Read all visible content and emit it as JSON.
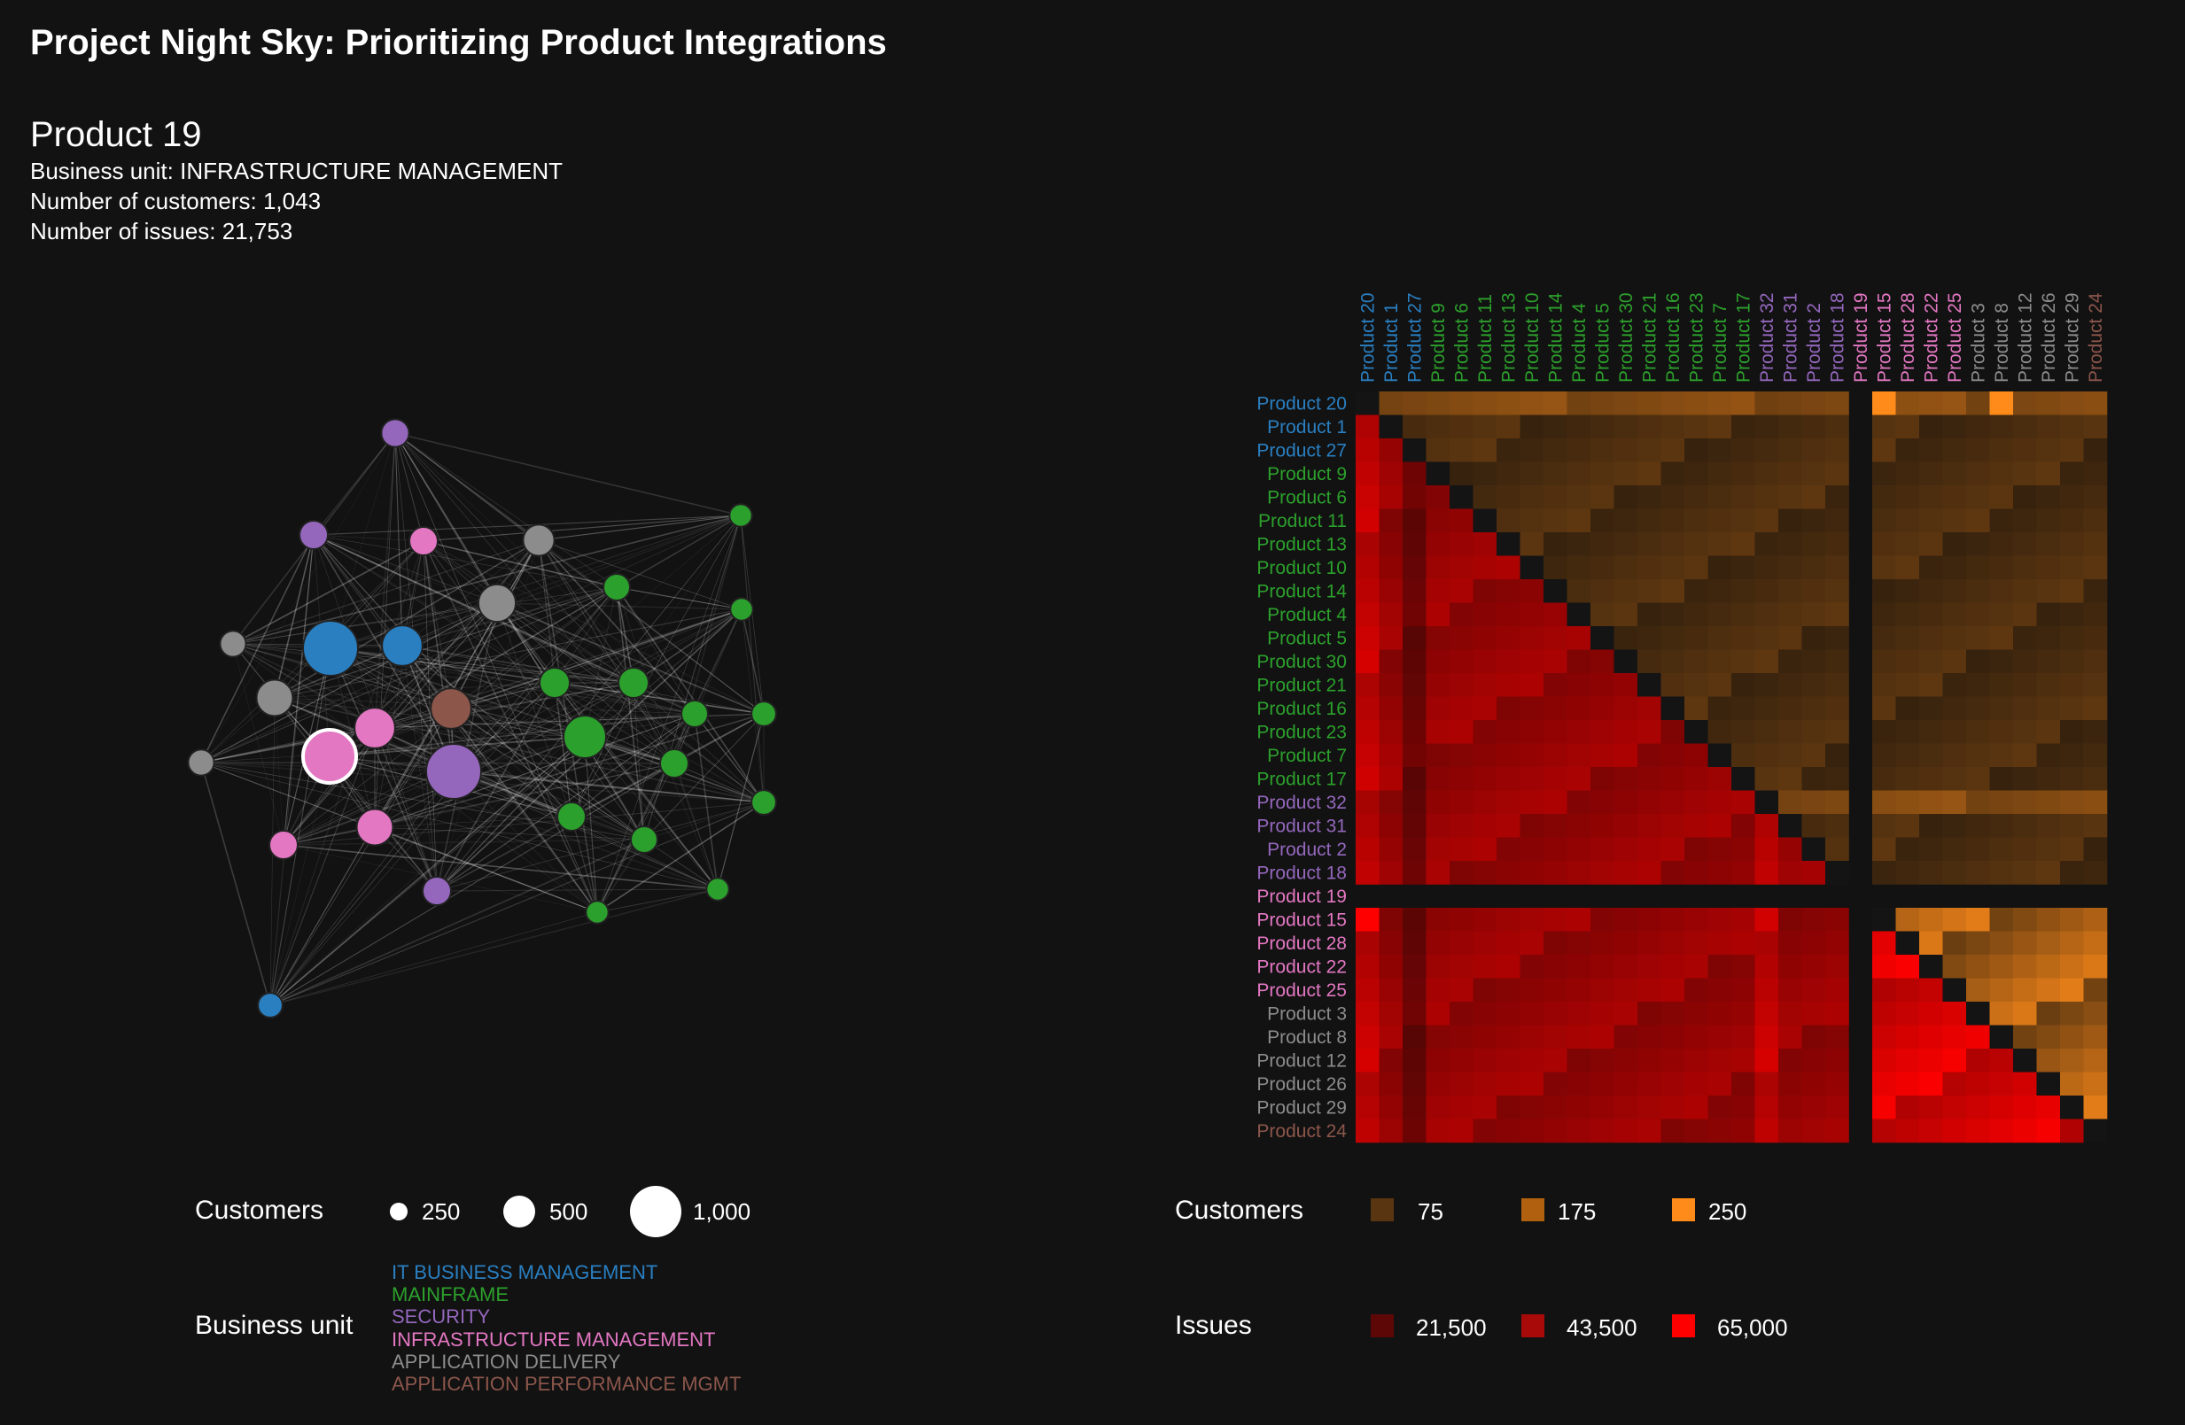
{
  "title": "Project Night Sky: Prioritizing Product Integrations",
  "selected": {
    "name": "Product 19",
    "business_unit": "Business unit: INFRASTRUCTURE MANAGEMENT",
    "customers": "Number of customers: 1,043",
    "issues": "Number of issues: 21,753"
  },
  "colors": {
    "background": "#121212",
    "IT BUSINESS MANAGEMENT": "#2a7fc1",
    "MAINFRAME": "#2ca02c",
    "SECURITY": "#9467bd",
    "INFRASTRUCTURE MANAGEMENT": "#e377c2",
    "APPLICATION DELIVERY": "#8c8c8c",
    "APPLICATION PERFORMANCE MGMT": "#8c564b",
    "customers_low": "#3a2410",
    "customers_high": "#ff8c1a",
    "issues_low": "#4a0808",
    "issues_high": "#ff0000"
  },
  "legend": {
    "customers_title": "Customers",
    "customer_sizes": [
      {
        "value": 250,
        "label": "250"
      },
      {
        "value": 500,
        "label": "500"
      },
      {
        "value": 1000,
        "label": "1,000"
      }
    ],
    "business_unit_title": "Business unit",
    "business_units": [
      "IT BUSINESS MANAGEMENT",
      "MAINFRAME",
      "SECURITY",
      "INFRASTRUCTURE MANAGEMENT",
      "APPLICATION DELIVERY",
      "APPLICATION PERFORMANCE MGMT"
    ],
    "matrix_customers_title": "Customers",
    "matrix_customers": [
      {
        "value": 75,
        "label": "75",
        "color": "#5a3512"
      },
      {
        "value": 175,
        "label": "175",
        "color": "#b0600f"
      },
      {
        "value": 250,
        "label": "250",
        "color": "#ff8c1a"
      }
    ],
    "matrix_issues_title": "Issues",
    "matrix_issues": [
      {
        "value": 21500,
        "label": "21,500",
        "color": "#5e0707"
      },
      {
        "value": 43500,
        "label": "43,500",
        "color": "#a80a0a"
      },
      {
        "value": 65000,
        "label": "65,000",
        "color": "#ff0000"
      }
    ]
  },
  "chart_data": [
    {
      "type": "network",
      "selected_node": "Product 19",
      "nodes": [
        {
          "bu": "IT BUSINESS MANAGEMENT",
          "customers": 1000
        },
        {
          "bu": "IT BUSINESS MANAGEMENT",
          "customers": 800
        },
        {
          "bu": "IT BUSINESS MANAGEMENT",
          "customers": 200
        },
        {
          "bu": "APPLICATION DELIVERY",
          "customers": 600
        },
        {
          "bu": "APPLICATION DELIVERY",
          "customers": 650
        },
        {
          "bu": "APPLICATION DELIVERY",
          "customers": 400
        },
        {
          "bu": "APPLICATION DELIVERY",
          "customers": 230
        },
        {
          "bu": "APPLICATION DELIVERY",
          "customers": 230
        },
        {
          "bu": "APPLICATION PERFORMANCE MGMT",
          "customers": 800
        },
        {
          "bu": "INFRASTRUCTURE MANAGEMENT",
          "customers": 1043
        },
        {
          "bu": "INFRASTRUCTURE MANAGEMENT",
          "customers": 800
        },
        {
          "bu": "INFRASTRUCTURE MANAGEMENT",
          "customers": 600
        },
        {
          "bu": "INFRASTRUCTURE MANAGEMENT",
          "customers": 300
        },
        {
          "bu": "INFRASTRUCTURE MANAGEMENT",
          "customers": 300
        },
        {
          "bu": "SECURITY",
          "customers": 1000
        },
        {
          "bu": "SECURITY",
          "customers": 300
        },
        {
          "bu": "SECURITY",
          "customers": 300
        },
        {
          "bu": "SECURITY",
          "customers": 280
        },
        {
          "bu": "MAINFRAME",
          "customers": 900
        },
        {
          "bu": "MAINFRAME",
          "customers": 360
        },
        {
          "bu": "MAINFRAME",
          "customers": 360
        },
        {
          "bu": "MAINFRAME",
          "customers": 300
        },
        {
          "bu": "MAINFRAME",
          "customers": 300
        },
        {
          "bu": "MAINFRAME",
          "customers": 250
        },
        {
          "bu": "MAINFRAME",
          "customers": 250
        },
        {
          "bu": "MAINFRAME",
          "customers": 250
        },
        {
          "bu": "MAINFRAME",
          "customers": 200
        },
        {
          "bu": "MAINFRAME",
          "customers": 200
        },
        {
          "bu": "MAINFRAME",
          "customers": 150
        },
        {
          "bu": "MAINFRAME",
          "customers": 150
        },
        {
          "bu": "MAINFRAME",
          "customers": 150
        },
        {
          "bu": "MAINFRAME",
          "customers": 150
        }
      ]
    },
    {
      "type": "heatmap",
      "upper_triangle": "shared customers",
      "lower_triangle": "shared issues",
      "products": [
        {
          "name": "Product 20",
          "bu": "IT BUSINESS MANAGEMENT"
        },
        {
          "name": "Product 1",
          "bu": "IT BUSINESS MANAGEMENT"
        },
        {
          "name": "Product 27",
          "bu": "IT BUSINESS MANAGEMENT"
        },
        {
          "name": "Product 9",
          "bu": "MAINFRAME"
        },
        {
          "name": "Product 6",
          "bu": "MAINFRAME"
        },
        {
          "name": "Product 11",
          "bu": "MAINFRAME"
        },
        {
          "name": "Product 13",
          "bu": "MAINFRAME"
        },
        {
          "name": "Product 10",
          "bu": "MAINFRAME"
        },
        {
          "name": "Product 14",
          "bu": "MAINFRAME"
        },
        {
          "name": "Product 4",
          "bu": "MAINFRAME"
        },
        {
          "name": "Product 5",
          "bu": "MAINFRAME"
        },
        {
          "name": "Product 30",
          "bu": "MAINFRAME"
        },
        {
          "name": "Product 21",
          "bu": "MAINFRAME"
        },
        {
          "name": "Product 16",
          "bu": "MAINFRAME"
        },
        {
          "name": "Product 23",
          "bu": "MAINFRAME"
        },
        {
          "name": "Product 7",
          "bu": "MAINFRAME"
        },
        {
          "name": "Product 17",
          "bu": "MAINFRAME"
        },
        {
          "name": "Product 32",
          "bu": "SECURITY"
        },
        {
          "name": "Product 31",
          "bu": "SECURITY"
        },
        {
          "name": "Product 2",
          "bu": "SECURITY"
        },
        {
          "name": "Product 18",
          "bu": "SECURITY"
        },
        {
          "name": "Product 19",
          "bu": "INFRASTRUCTURE MANAGEMENT"
        },
        {
          "name": "Product 15",
          "bu": "INFRASTRUCTURE MANAGEMENT"
        },
        {
          "name": "Product 28",
          "bu": "INFRASTRUCTURE MANAGEMENT"
        },
        {
          "name": "Product 22",
          "bu": "INFRASTRUCTURE MANAGEMENT"
        },
        {
          "name": "Product 25",
          "bu": "INFRASTRUCTURE MANAGEMENT"
        },
        {
          "name": "Product 3",
          "bu": "APPLICATION DELIVERY"
        },
        {
          "name": "Product 8",
          "bu": "APPLICATION DELIVERY"
        },
        {
          "name": "Product 12",
          "bu": "APPLICATION DELIVERY"
        },
        {
          "name": "Product 26",
          "bu": "APPLICATION DELIVERY"
        },
        {
          "name": "Product 29",
          "bu": "APPLICATION DELIVERY"
        },
        {
          "name": "Product 24",
          "bu": "APPLICATION PERFORMANCE MGMT"
        }
      ],
      "customers_range": [
        0,
        250
      ],
      "issues_range": [
        0,
        65000
      ]
    }
  ]
}
